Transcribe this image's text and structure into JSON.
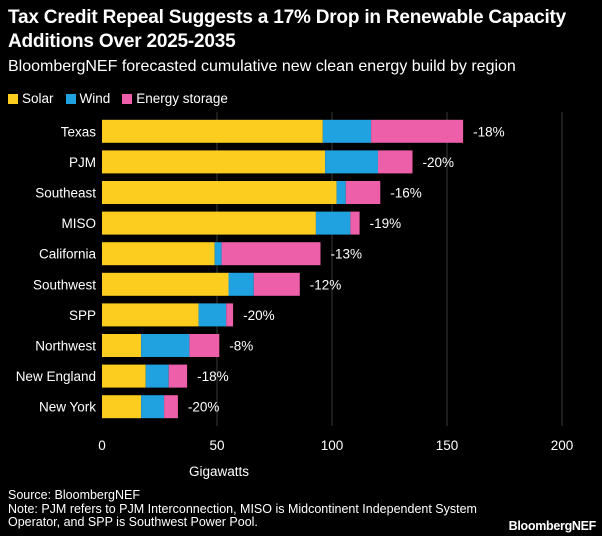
{
  "header": {
    "title": "Tax Credit Repeal Suggests a 17% Drop in Renewable Capacity Additions Over 2025-2035",
    "subtitle": "BloombergNEF forecasted cumulative new clean energy build by region"
  },
  "colors": {
    "solar": "#fccc1f",
    "wind": "#21a2e0",
    "storage": "#ee5fa9",
    "grid": "#3a3a3a",
    "background": "#000000",
    "text": "#ffffff"
  },
  "chart_data": {
    "type": "bar",
    "orientation": "horizontal",
    "stacked": true,
    "title": "Tax Credit Repeal Suggests a 17% Drop in Renewable Capacity Additions Over 2025-2035",
    "subtitle": "BloombergNEF forecasted cumulative new clean energy build by region",
    "xlabel": "Gigawatts",
    "ylabel": "",
    "xlim": [
      0,
      200
    ],
    "xticks": [
      0,
      50,
      100,
      150,
      200
    ],
    "grid": true,
    "legend": "top-left",
    "categories": [
      "Texas",
      "PJM",
      "Southeast",
      "MISO",
      "California",
      "Southwest",
      "SPP",
      "Northwest",
      "New England",
      "New York"
    ],
    "series": [
      {
        "name": "Solar",
        "values": [
          96,
          97,
          102,
          93,
          49,
          55,
          42,
          17,
          19,
          17
        ]
      },
      {
        "name": "Wind",
        "values": [
          21,
          23,
          4,
          15,
          3,
          11,
          12,
          21,
          10,
          10
        ]
      },
      {
        "name": "Energy storage",
        "values": [
          40,
          15,
          15,
          4,
          43,
          20,
          3,
          13,
          8,
          6
        ]
      }
    ],
    "annotations": [
      "-18%",
      "-20%",
      "-16%",
      "-19%",
      "-13%",
      "-12%",
      "-20%",
      "-8%",
      "-18%",
      "-20%"
    ]
  },
  "footer": {
    "source": "Source: BloombergNEF",
    "note": "Note: PJM refers to PJM Interconnection, MISO is Midcontinent Independent System Operator, and SPP is Southwest Power Pool.",
    "brand": "BloombergNEF"
  }
}
